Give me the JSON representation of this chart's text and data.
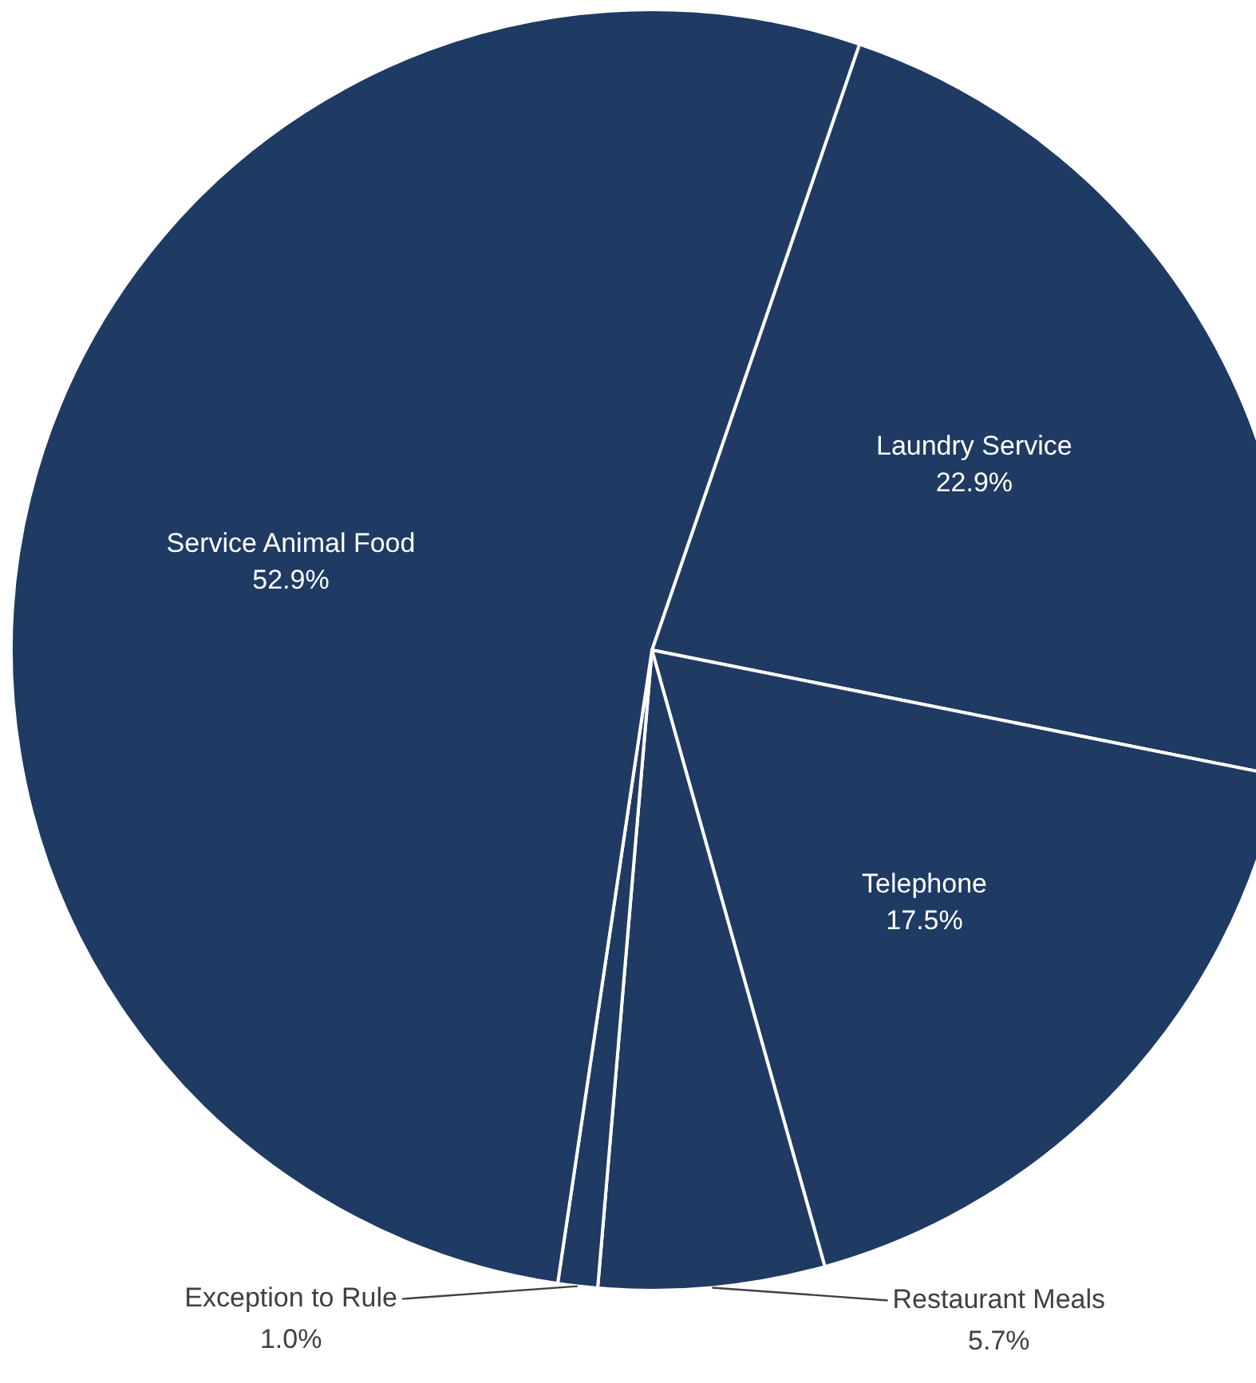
{
  "chart_data": {
    "type": "pie",
    "categories": [
      "Laundry Service",
      "Telephone",
      "Restaurant Meals",
      "Exception to Rule",
      "Service Animal Food"
    ],
    "values": [
      22.9,
      17.5,
      5.7,
      1.0,
      52.9
    ],
    "value_labels": [
      "22.9%",
      "17.5%",
      "5.7%",
      "1.0%",
      "52.9%"
    ],
    "colors": [
      "#1f3a63",
      "#1f3a63",
      "#1f3a63",
      "#1f3a63",
      "#1f3a63"
    ],
    "legend": false
  }
}
